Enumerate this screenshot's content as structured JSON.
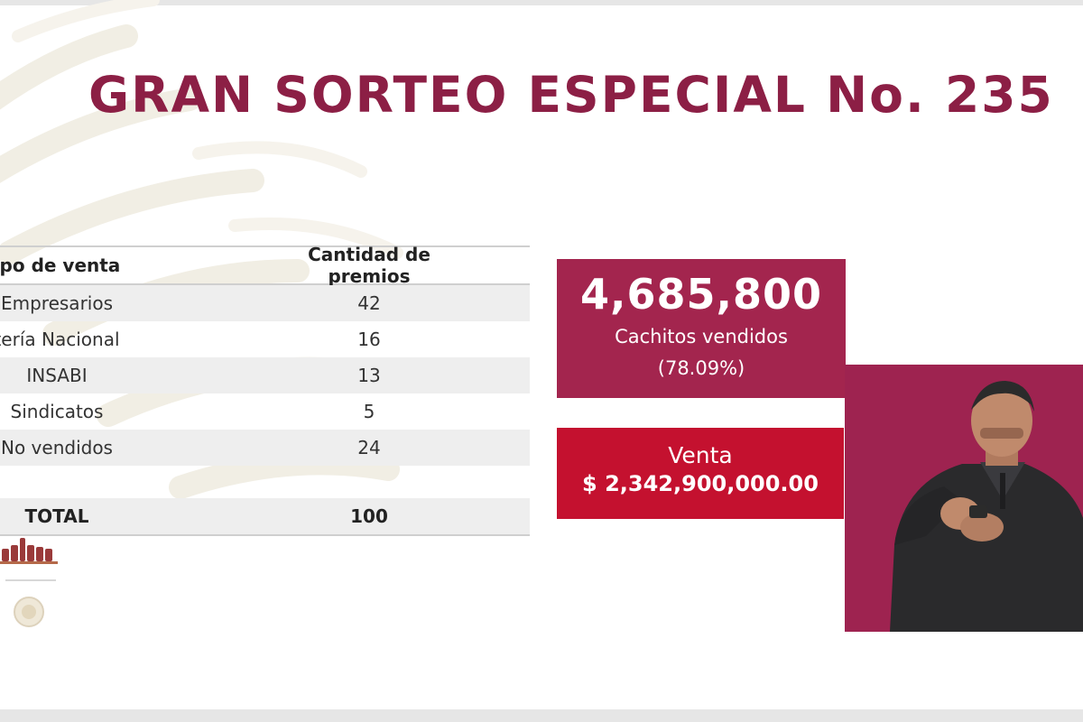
{
  "title": "GRAN SORTEO ESPECIAL No. 235",
  "table": {
    "headers": [
      "ipo de venta",
      "Cantidad de premios"
    ],
    "rows": [
      {
        "tipo": "Empresarios",
        "cantidad": "42"
      },
      {
        "tipo": "tería Nacional",
        "cantidad": "16"
      },
      {
        "tipo": "INSABI",
        "cantidad": "13"
      },
      {
        "tipo": "Sindicatos",
        "cantidad": "5"
      },
      {
        "tipo": "No vendidos",
        "cantidad": "24"
      }
    ],
    "total": {
      "label": "TOTAL",
      "value": "100"
    }
  },
  "sold": {
    "count": "4,685,800",
    "label": "Cachitos vendidos",
    "percent": "(78.09%)"
  },
  "sale": {
    "label": "Venta",
    "amount": "$ 2,342,900,000.00"
  },
  "colors": {
    "title": "#8c1f45",
    "sold_card": "#a3254e",
    "sale_card": "#c4112f",
    "interpreter_bg": "#9e2350"
  }
}
